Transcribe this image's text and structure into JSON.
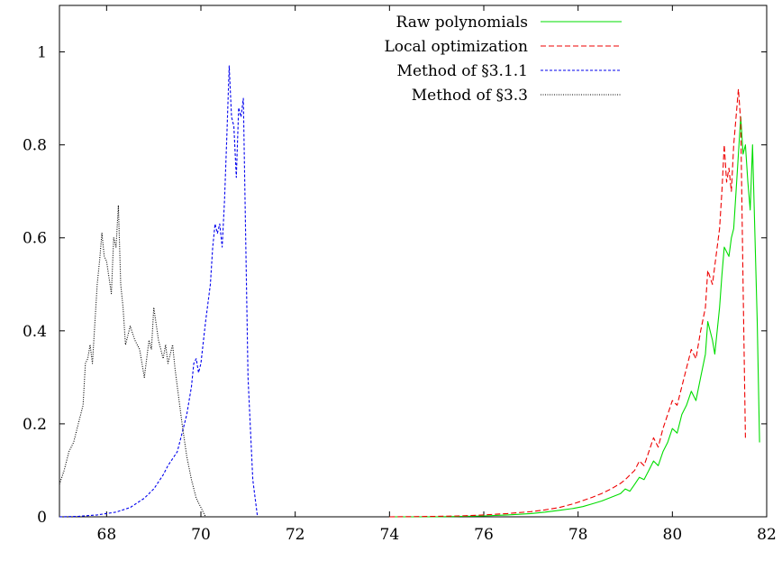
{
  "chart_data": {
    "type": "line",
    "title": "",
    "xlabel": "",
    "ylabel": "",
    "xlim": [
      67,
      82
    ],
    "ylim": [
      0,
      1.1
    ],
    "x_ticks": [
      68,
      70,
      72,
      74,
      76,
      78,
      80,
      82
    ],
    "y_ticks": [
      0,
      0.2,
      0.4,
      0.6,
      0.8,
      1
    ],
    "y_tick_labels": [
      "0",
      "0.2",
      "0.4",
      "0.6",
      "0.8",
      "1"
    ],
    "grid": false,
    "legend_position": "top-right",
    "series": [
      {
        "name": "Raw polynomials",
        "color": "#00dd00",
        "dash": "solid",
        "points": [
          [
            74.0,
            0.0
          ],
          [
            75.0,
            0.0
          ],
          [
            75.5,
            0.001
          ],
          [
            76.0,
            0.002
          ],
          [
            76.5,
            0.004
          ],
          [
            77.0,
            0.007
          ],
          [
            77.3,
            0.01
          ],
          [
            77.6,
            0.014
          ],
          [
            77.9,
            0.018
          ],
          [
            78.1,
            0.022
          ],
          [
            78.3,
            0.028
          ],
          [
            78.5,
            0.034
          ],
          [
            78.7,
            0.042
          ],
          [
            78.9,
            0.05
          ],
          [
            79.0,
            0.06
          ],
          [
            79.1,
            0.055
          ],
          [
            79.2,
            0.07
          ],
          [
            79.3,
            0.085
          ],
          [
            79.4,
            0.08
          ],
          [
            79.5,
            0.1
          ],
          [
            79.6,
            0.12
          ],
          [
            79.7,
            0.11
          ],
          [
            79.8,
            0.14
          ],
          [
            79.9,
            0.16
          ],
          [
            80.0,
            0.19
          ],
          [
            80.1,
            0.18
          ],
          [
            80.2,
            0.22
          ],
          [
            80.3,
            0.24
          ],
          [
            80.4,
            0.27
          ],
          [
            80.5,
            0.25
          ],
          [
            80.6,
            0.3
          ],
          [
            80.7,
            0.35
          ],
          [
            80.75,
            0.42
          ],
          [
            80.85,
            0.38
          ],
          [
            80.9,
            0.35
          ],
          [
            81.0,
            0.45
          ],
          [
            81.05,
            0.52
          ],
          [
            81.1,
            0.58
          ],
          [
            81.2,
            0.56
          ],
          [
            81.25,
            0.6
          ],
          [
            81.3,
            0.62
          ],
          [
            81.35,
            0.7
          ],
          [
            81.45,
            0.86
          ],
          [
            81.5,
            0.78
          ],
          [
            81.55,
            0.8
          ],
          [
            81.6,
            0.72
          ],
          [
            81.65,
            0.66
          ],
          [
            81.7,
            0.8
          ],
          [
            81.8,
            0.42
          ],
          [
            81.85,
            0.16
          ]
        ]
      },
      {
        "name": "Local optimization",
        "color": "#ee0000",
        "dash": "long",
        "points": [
          [
            74.0,
            0.0
          ],
          [
            75.0,
            0.001
          ],
          [
            75.5,
            0.002
          ],
          [
            76.0,
            0.004
          ],
          [
            76.5,
            0.007
          ],
          [
            77.0,
            0.011
          ],
          [
            77.3,
            0.015
          ],
          [
            77.6,
            0.02
          ],
          [
            77.9,
            0.028
          ],
          [
            78.1,
            0.035
          ],
          [
            78.3,
            0.042
          ],
          [
            78.5,
            0.05
          ],
          [
            78.7,
            0.06
          ],
          [
            78.9,
            0.072
          ],
          [
            79.0,
            0.08
          ],
          [
            79.1,
            0.09
          ],
          [
            79.2,
            0.1
          ],
          [
            79.3,
            0.12
          ],
          [
            79.4,
            0.11
          ],
          [
            79.5,
            0.14
          ],
          [
            79.6,
            0.17
          ],
          [
            79.7,
            0.15
          ],
          [
            79.8,
            0.19
          ],
          [
            79.9,
            0.22
          ],
          [
            80.0,
            0.25
          ],
          [
            80.1,
            0.24
          ],
          [
            80.2,
            0.28
          ],
          [
            80.3,
            0.32
          ],
          [
            80.4,
            0.36
          ],
          [
            80.5,
            0.34
          ],
          [
            80.6,
            0.4
          ],
          [
            80.7,
            0.45
          ],
          [
            80.75,
            0.53
          ],
          [
            80.85,
            0.5
          ],
          [
            80.9,
            0.54
          ],
          [
            81.0,
            0.62
          ],
          [
            81.05,
            0.7
          ],
          [
            81.1,
            0.8
          ],
          [
            81.15,
            0.72
          ],
          [
            81.2,
            0.75
          ],
          [
            81.25,
            0.7
          ],
          [
            81.3,
            0.8
          ],
          [
            81.4,
            0.92
          ],
          [
            81.45,
            0.85
          ],
          [
            81.5,
            0.5
          ],
          [
            81.55,
            0.17
          ]
        ]
      },
      {
        "name": "Method of §3.1.1",
        "color": "#0000ee",
        "dash": "short",
        "points": [
          [
            67.0,
            0.0
          ],
          [
            67.4,
            0.001
          ],
          [
            67.8,
            0.004
          ],
          [
            68.2,
            0.01
          ],
          [
            68.5,
            0.02
          ],
          [
            68.8,
            0.04
          ],
          [
            69.0,
            0.06
          ],
          [
            69.2,
            0.09
          ],
          [
            69.3,
            0.11
          ],
          [
            69.5,
            0.14
          ],
          [
            69.6,
            0.18
          ],
          [
            69.7,
            0.22
          ],
          [
            69.8,
            0.28
          ],
          [
            69.85,
            0.33
          ],
          [
            69.9,
            0.34
          ],
          [
            69.95,
            0.31
          ],
          [
            70.0,
            0.33
          ],
          [
            70.1,
            0.42
          ],
          [
            70.2,
            0.5
          ],
          [
            70.25,
            0.58
          ],
          [
            70.3,
            0.63
          ],
          [
            70.35,
            0.61
          ],
          [
            70.4,
            0.63
          ],
          [
            70.45,
            0.58
          ],
          [
            70.5,
            0.68
          ],
          [
            70.55,
            0.82
          ],
          [
            70.6,
            0.97
          ],
          [
            70.65,
            0.86
          ],
          [
            70.7,
            0.84
          ],
          [
            70.75,
            0.73
          ],
          [
            70.8,
            0.88
          ],
          [
            70.85,
            0.86
          ],
          [
            70.9,
            0.9
          ],
          [
            70.95,
            0.6
          ],
          [
            71.0,
            0.3
          ],
          [
            71.1,
            0.08
          ],
          [
            71.2,
            0.0
          ]
        ]
      },
      {
        "name": "Method of §3.3",
        "color": "#000000",
        "dash": "dot",
        "points": [
          [
            67.0,
            0.07
          ],
          [
            67.1,
            0.1
          ],
          [
            67.2,
            0.14
          ],
          [
            67.3,
            0.16
          ],
          [
            67.4,
            0.2
          ],
          [
            67.5,
            0.24
          ],
          [
            67.55,
            0.33
          ],
          [
            67.6,
            0.34
          ],
          [
            67.65,
            0.37
          ],
          [
            67.7,
            0.33
          ],
          [
            67.8,
            0.5
          ],
          [
            67.85,
            0.55
          ],
          [
            67.9,
            0.61
          ],
          [
            67.95,
            0.56
          ],
          [
            68.0,
            0.55
          ],
          [
            68.1,
            0.48
          ],
          [
            68.15,
            0.6
          ],
          [
            68.2,
            0.58
          ],
          [
            68.25,
            0.67
          ],
          [
            68.3,
            0.5
          ],
          [
            68.35,
            0.45
          ],
          [
            68.4,
            0.37
          ],
          [
            68.5,
            0.41
          ],
          [
            68.6,
            0.38
          ],
          [
            68.7,
            0.36
          ],
          [
            68.8,
            0.3
          ],
          [
            68.9,
            0.38
          ],
          [
            68.95,
            0.36
          ],
          [
            69.0,
            0.45
          ],
          [
            69.1,
            0.38
          ],
          [
            69.2,
            0.34
          ],
          [
            69.25,
            0.37
          ],
          [
            69.3,
            0.33
          ],
          [
            69.4,
            0.37
          ],
          [
            69.45,
            0.32
          ],
          [
            69.5,
            0.28
          ],
          [
            69.6,
            0.2
          ],
          [
            69.7,
            0.13
          ],
          [
            69.8,
            0.08
          ],
          [
            69.9,
            0.04
          ],
          [
            70.0,
            0.02
          ],
          [
            70.1,
            0.0
          ]
        ]
      }
    ]
  }
}
